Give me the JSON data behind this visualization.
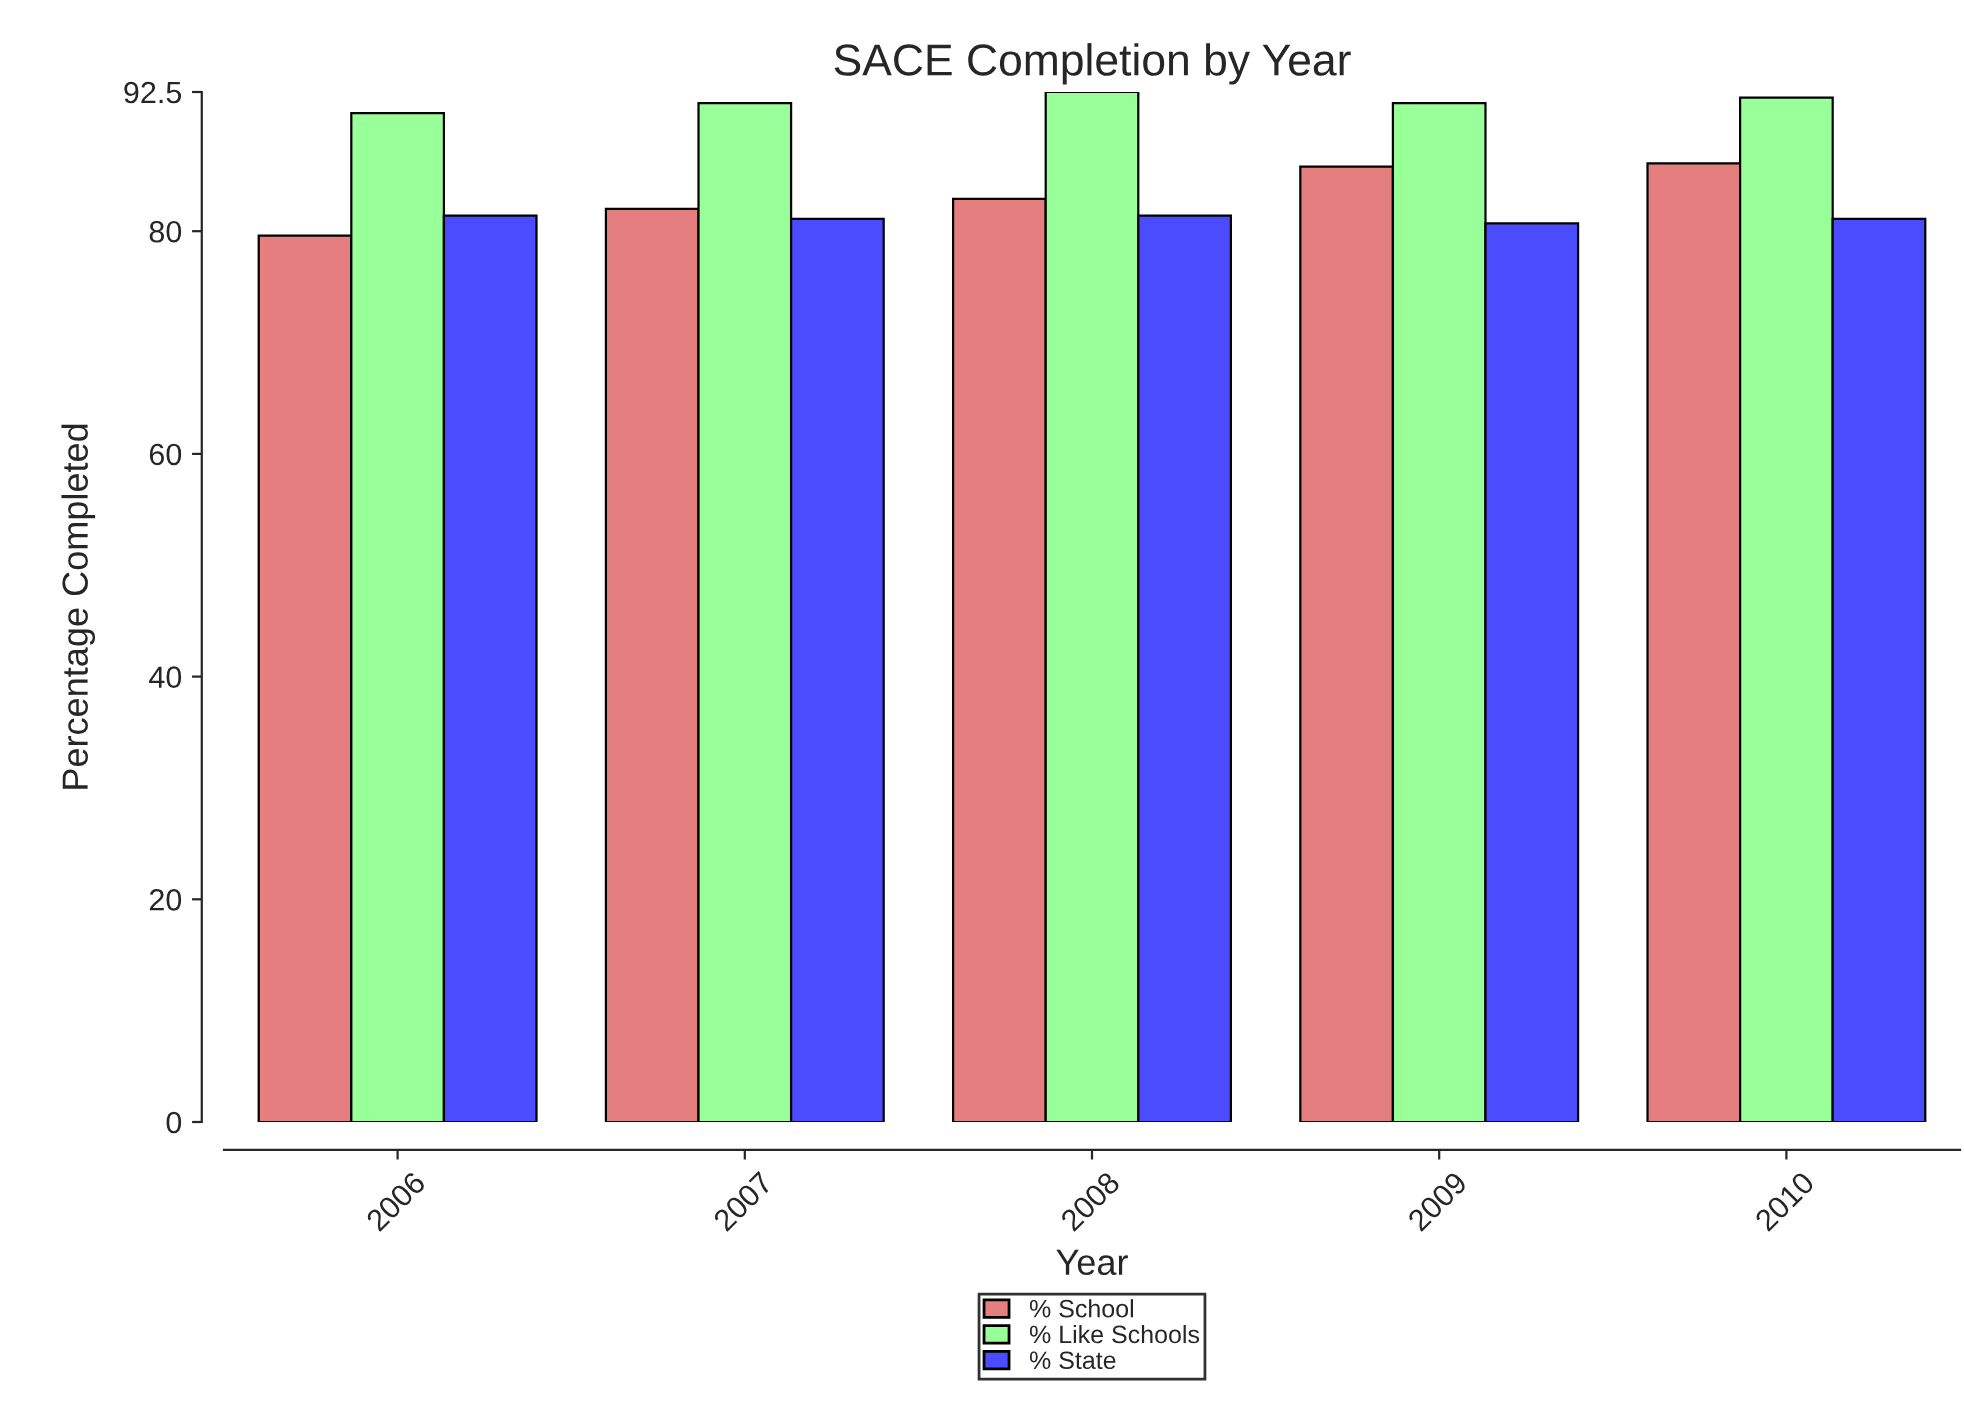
{
  "chart_data": {
    "type": "bar",
    "title": "SACE Completion by Year",
    "xlabel": "Year",
    "ylabel": "Percentage Completed",
    "categories": [
      "2006",
      "2007",
      "2008",
      "2009",
      "2010"
    ],
    "series": [
      {
        "name": "% School",
        "color": "#e57f7f",
        "values": [
          79.6,
          82.0,
          82.9,
          85.8,
          86.1
        ]
      },
      {
        "name": "% Like Schools",
        "color": "#99ff99",
        "values": [
          90.6,
          91.5,
          92.5,
          91.5,
          92.0
        ]
      },
      {
        "name": "% State",
        "color": "#4c4cff",
        "values": [
          81.4,
          81.1,
          81.4,
          80.7,
          81.1
        ]
      }
    ],
    "ylim": [
      0,
      92.5
    ],
    "yticks": [
      0,
      20,
      40,
      60,
      80,
      92.5
    ],
    "grid": false,
    "legend": "bottom"
  }
}
